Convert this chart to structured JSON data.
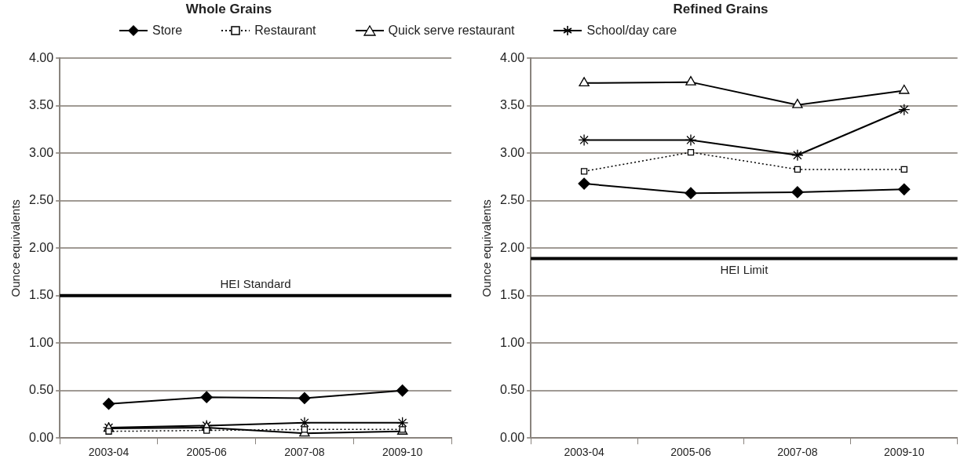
{
  "chart_data": [
    {
      "type": "line",
      "title": "Whole Grains",
      "ylabel": "Ounce equivalents",
      "categories": [
        "2003-04",
        "2005-06",
        "2007-08",
        "2009-10"
      ],
      "ylim": [
        0,
        4
      ],
      "yticks": [
        {
          "value": 0,
          "label": "0.00"
        },
        {
          "value": 0.5,
          "label": "0.50"
        },
        {
          "value": 1,
          "label": "1.00"
        },
        {
          "value": 1.5,
          "label": "1.50"
        },
        {
          "value": 2,
          "label": "2.00"
        },
        {
          "value": 2.5,
          "label": "2.50"
        },
        {
          "value": 3,
          "label": "3.00"
        },
        {
          "value": 3.5,
          "label": "3.50"
        },
        {
          "value": 4,
          "label": "4.00"
        }
      ],
      "grid": "y",
      "legend": "top",
      "ref_lines": [
        {
          "axis": "y",
          "value": 1.5,
          "label": "HEI Standard",
          "color": "#000000"
        }
      ],
      "series": [
        {
          "name": "Store",
          "color": "#000000",
          "marker": "diamond",
          "line_style": "solid",
          "values": [
            0.36,
            0.43,
            0.42,
            0.5
          ]
        },
        {
          "name": "Restaurant",
          "color": "#000000",
          "marker": "square",
          "line_style": "dotted",
          "values": [
            0.07,
            0.08,
            0.09,
            0.09
          ]
        },
        {
          "name": "Quick serve restaurant",
          "color": "#000000",
          "marker": "triangle",
          "line_style": "solid",
          "values": [
            0.1,
            0.11,
            0.05,
            0.07
          ]
        },
        {
          "name": "School/day care",
          "color": "#000000",
          "marker": "cross",
          "line_style": "solid",
          "values": [
            0.11,
            0.13,
            0.16,
            0.16
          ]
        }
      ]
    },
    {
      "type": "line",
      "title": "Refined Grains",
      "ylabel": "Ounce equivalents",
      "categories": [
        "2003-04",
        "2005-06",
        "2007-08",
        "2009-10"
      ],
      "ylim": [
        0,
        4
      ],
      "yticks": [
        {
          "value": 0,
          "label": "0.00"
        },
        {
          "value": 0.5,
          "label": "0.50"
        },
        {
          "value": 1,
          "label": "1.00"
        },
        {
          "value": 1.5,
          "label": "1.50"
        },
        {
          "value": 2,
          "label": "2.00"
        },
        {
          "value": 2.5,
          "label": "2.50"
        },
        {
          "value": 3,
          "label": "3.00"
        },
        {
          "value": 3.5,
          "label": "3.50"
        },
        {
          "value": 4,
          "label": "4.00"
        }
      ],
      "grid": "y",
      "ref_lines": [
        {
          "axis": "y",
          "value": 1.89,
          "label": "HEI Limit",
          "color": "#000000"
        }
      ],
      "series": [
        {
          "color": "#000000",
          "marker": "diamond",
          "line_style": "solid",
          "values": [
            2.68,
            2.58,
            2.59,
            2.62
          ]
        },
        {
          "color": "#000000",
          "marker": "square",
          "line_style": "dotted",
          "values": [
            2.81,
            3.01,
            2.83,
            2.83
          ]
        },
        {
          "color": "#000000",
          "marker": "triangle",
          "line_style": "solid",
          "values": [
            3.74,
            3.75,
            3.51,
            3.66
          ]
        },
        {
          "color": "#000000",
          "marker": "cross",
          "line_style": "solid",
          "values": [
            3.14,
            3.14,
            2.98,
            3.46
          ]
        }
      ]
    }
  ]
}
